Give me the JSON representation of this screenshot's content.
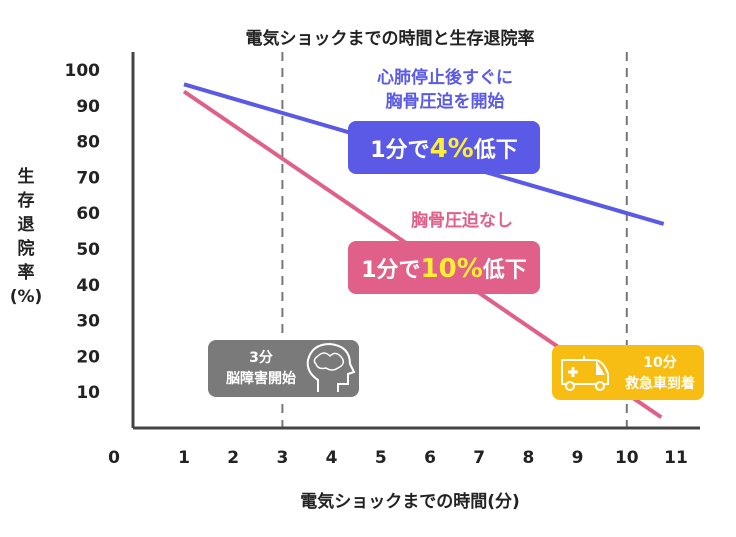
{
  "chart_data": {
    "type": "line",
    "title": "電気ショックまでの時間と生存退院率",
    "xlabel": "電気ショックまでの時間(分)",
    "ylabel_chars": [
      "生",
      "存",
      "退",
      "院",
      "率",
      "(%)"
    ],
    "xlim": [
      0,
      11
    ],
    "ylim": [
      0,
      100
    ],
    "x_ticks": [
      0,
      1,
      2,
      3,
      4,
      5,
      6,
      7,
      8,
      9,
      10,
      11
    ],
    "y_ticks": [
      10,
      20,
      30,
      40,
      50,
      60,
      70,
      80,
      90,
      100
    ],
    "series": [
      {
        "name": "心肺停止後すぐに胸骨圧迫を開始",
        "color": "#5a5ae6",
        "x": [
          1,
          10.75
        ],
        "y": [
          96,
          57
        ]
      },
      {
        "name": "胸骨圧迫なし",
        "color": "#e0608a",
        "x": [
          1,
          10.7
        ],
        "y": [
          94,
          3
        ]
      }
    ],
    "reference_lines": [
      3,
      10
    ],
    "annotations": {
      "blue_caption": [
        "心肺停止後すぐに",
        "胸骨圧迫を開始"
      ],
      "blue_box": {
        "pre": "1分で",
        "value": "4%",
        "post": "低下"
      },
      "pink_caption": "胸骨圧迫なし",
      "pink_box": {
        "pre": "1分で",
        "value": "10%",
        "post": "低下"
      },
      "brain_box": [
        "3分",
        "脳障害開始"
      ],
      "ambulance_box": [
        "10分",
        "救急車到着"
      ]
    },
    "colors": {
      "blue": "#5a5ae6",
      "pink": "#e0608a",
      "gray": "#7a7a7a",
      "yellow": "#f7bd12",
      "highlight": "#ffee33"
    }
  }
}
